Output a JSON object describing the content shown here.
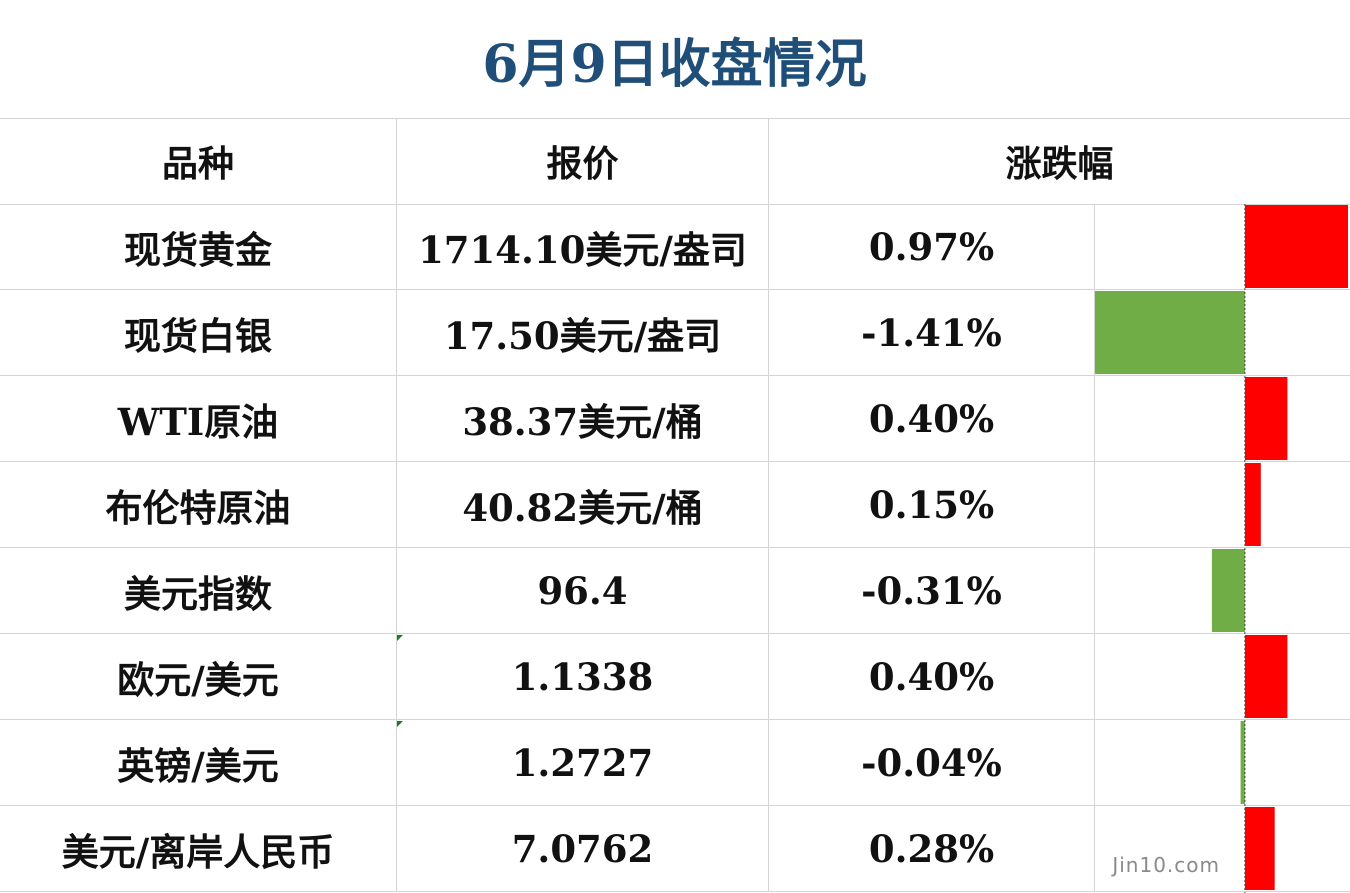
{
  "title": "6月9日收盘情况",
  "headers": {
    "name": "品种",
    "price": "报价",
    "change": "涨跌幅"
  },
  "watermark": "Jin10.com",
  "colors": {
    "up": "#ff0000",
    "down": "#70ad47",
    "title": "#1f4e79"
  },
  "chart_data": {
    "type": "bar",
    "title": "6月9日收盘情况",
    "categories": [
      "现货黄金",
      "现货白银",
      "WTI原油",
      "布伦特原油",
      "美元指数",
      "欧元/美元",
      "英镑/美元",
      "美元/离岸人民币"
    ],
    "prices": [
      "1714.10美元/盎司",
      "17.50美元/盎司",
      "38.37美元/桶",
      "40.82美元/桶",
      "96.4",
      "1.1338",
      "1.2727",
      "7.0762"
    ],
    "labels": [
      "0.97%",
      "-1.41%",
      "0.40%",
      "0.15%",
      "-0.31%",
      "0.40%",
      "-0.04%",
      "0.28%"
    ],
    "values": [
      0.97,
      -1.41,
      0.4,
      0.15,
      -0.31,
      0.4,
      -0.04,
      0.28
    ],
    "xlim": [
      -1.41,
      0.97
    ]
  }
}
